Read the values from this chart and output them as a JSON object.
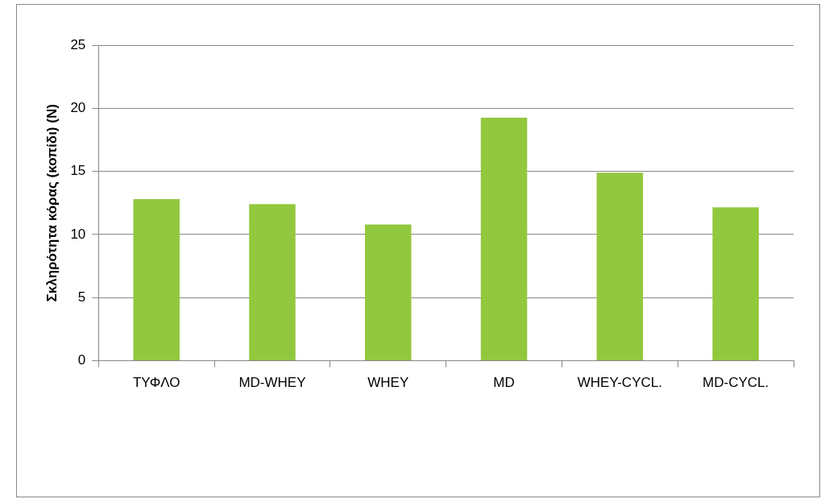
{
  "chart_data": {
    "type": "bar",
    "ylabel": "Σκληρότητα κόρας (κοπίδι) (N)",
    "categories": [
      "ΤΥΦΛΟ",
      "MD-WHEY",
      "WHEY",
      "MD",
      "WHEY-CYCL.",
      "MD-CYCL."
    ],
    "values": [
      12.8,
      12.4,
      10.8,
      19.25,
      14.9,
      12.15
    ],
    "color": "#92c83e",
    "ylim": [
      0,
      25
    ],
    "yticks": [
      0,
      5,
      10,
      15,
      20,
      25
    ],
    "grid": "y"
  }
}
